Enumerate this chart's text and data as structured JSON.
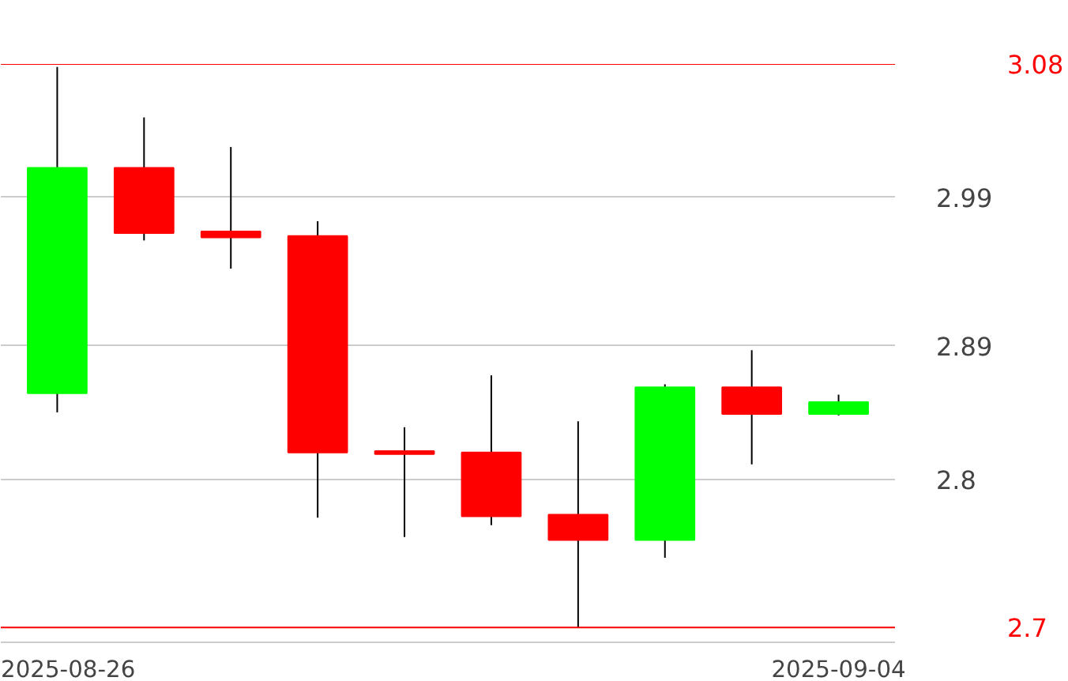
{
  "chart_data": {
    "type": "candlestick",
    "categories": [
      "2025-08-26",
      null,
      null,
      null,
      null,
      null,
      null,
      null,
      null,
      "2025-09-04"
    ],
    "ohlc": [
      [
        2.858,
        3.078,
        2.845,
        3.01
      ],
      [
        3.01,
        3.044,
        2.961,
        2.966
      ],
      [
        2.967,
        3.024,
        2.942,
        2.963
      ],
      [
        2.964,
        2.974,
        2.774,
        2.818
      ],
      [
        2.819,
        2.835,
        2.761,
        2.817
      ],
      [
        2.818,
        2.87,
        2.769,
        2.775
      ],
      [
        2.776,
        2.839,
        2.7,
        2.759
      ],
      [
        2.759,
        2.864,
        2.747,
        2.862
      ],
      [
        2.862,
        2.887,
        2.81,
        2.844
      ],
      [
        2.844,
        2.857,
        2.843,
        2.852
      ]
    ],
    "colors": [
      "#00ff00",
      "#ff0000",
      "#ff0000",
      "#ff0000",
      "#ff0000",
      "#ff0000",
      "#ff0000",
      "#00ff00",
      "#ff0000",
      "#00ff00"
    ],
    "ylim": [
      2.69,
      3.08
    ],
    "yticks": [
      2.8,
      2.89,
      2.99
    ],
    "ref_lines": [
      {
        "axis": "y",
        "value": 3.08,
        "label": "3.08",
        "color": "#ff0000"
      },
      {
        "axis": "y",
        "value": 2.7,
        "label": "2.7",
        "color": "#ff0000"
      }
    ],
    "grid": "y"
  }
}
